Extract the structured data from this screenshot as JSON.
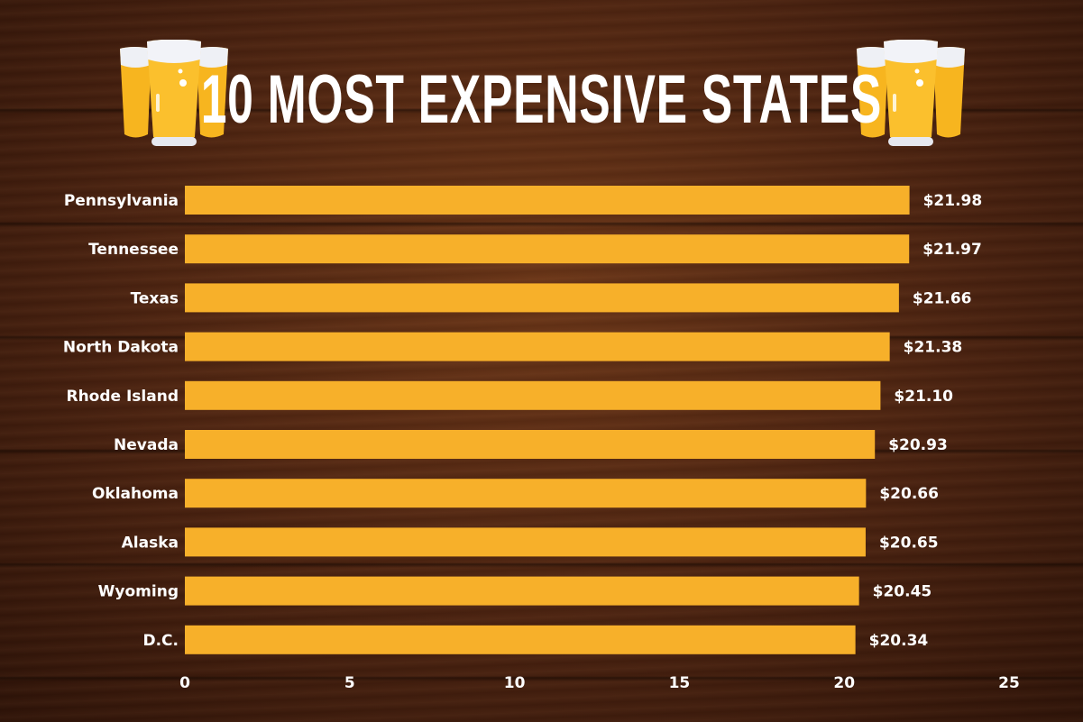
{
  "chart_data": {
    "type": "bar",
    "orientation": "horizontal",
    "title": "10 MOST EXPENSIVE STATES",
    "categories": [
      "Pennsylvania",
      "Tennessee",
      "Texas",
      "North Dakota",
      "Rhode Island",
      "Nevada",
      "Oklahoma",
      "Alaska",
      "Wyoming",
      "D.C."
    ],
    "values": [
      21.98,
      21.97,
      21.66,
      21.38,
      21.1,
      20.93,
      20.66,
      20.65,
      20.45,
      20.34
    ],
    "data_labels": [
      "$21.98",
      "$21.97",
      "$21.66",
      "$21.38",
      "$21.10",
      "$20.93",
      "$20.66",
      "$20.65",
      "$20.45",
      "$20.34"
    ],
    "xlim": [
      0,
      25
    ],
    "xticks": [
      0,
      5,
      10,
      15,
      20,
      25
    ],
    "grid": false,
    "colors": {
      "bar": "#F7B02A",
      "text": "#FFFFFF",
      "background": "#4A2210"
    },
    "decoration_icons": [
      "beer-glasses-icon"
    ]
  }
}
